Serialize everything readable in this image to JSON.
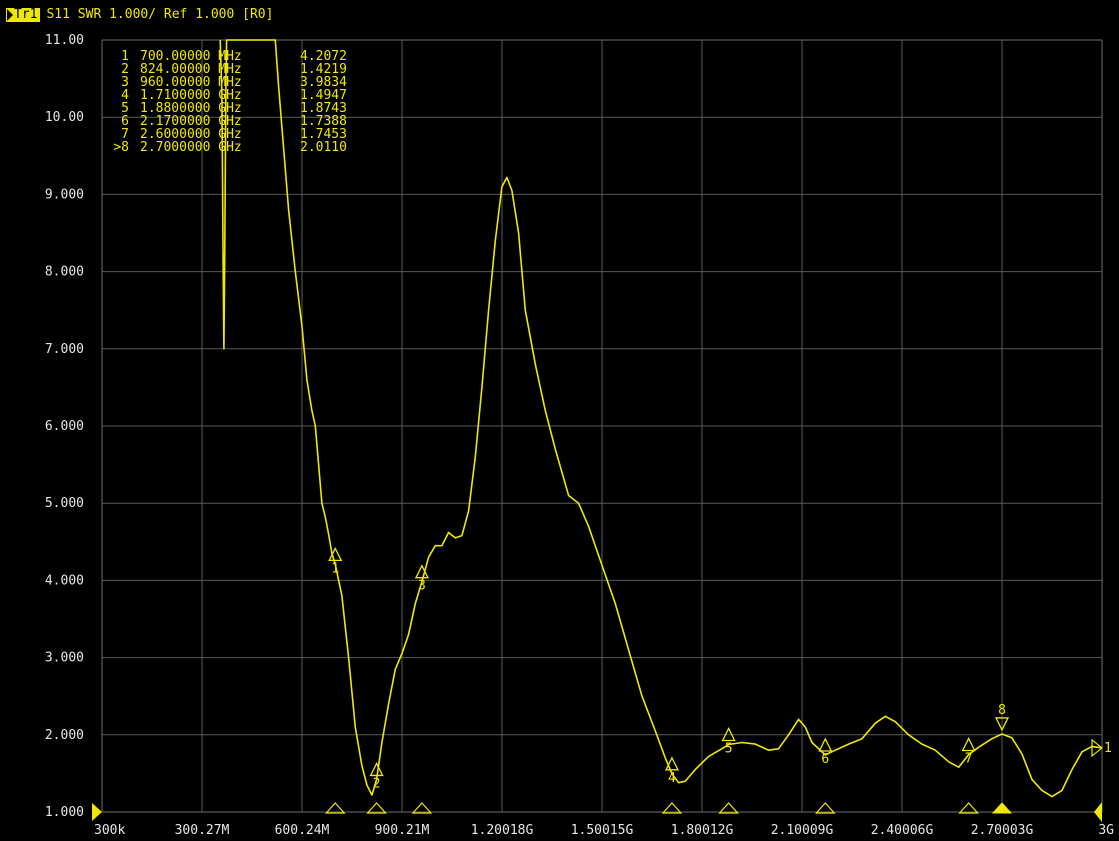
{
  "header": {
    "trace_label": "Tr1",
    "text": "S11 SWR 1.000/ Ref 1.000 [R0]"
  },
  "colors": {
    "background": "#000000",
    "trace": "#f0e800",
    "grid": "#5a5a5a",
    "text": "#e6e6e6"
  },
  "markers_table": [
    {
      "id": "1",
      "freq": "700.00000 MHz",
      "value": "4.2072"
    },
    {
      "id": "2",
      "freq": "824.00000 MHz",
      "value": "1.4219"
    },
    {
      "id": "3",
      "freq": "960.00000 MHz",
      "value": "3.9834"
    },
    {
      "id": "4",
      "freq": "1.7100000 GHz",
      "value": "1.4947"
    },
    {
      "id": "5",
      "freq": "1.8800000 GHz",
      "value": "1.8743"
    },
    {
      "id": "6",
      "freq": "2.1700000 GHz",
      "value": "1.7388"
    },
    {
      "id": "7",
      "freq": "2.6000000 GHz",
      "value": "1.7453"
    },
    {
      "id": ">8",
      "freq": "2.7000000 GHz",
      "value": "2.0110"
    }
  ],
  "chart_data": {
    "type": "line",
    "title": "S11 SWR 1.000/ Ref 1.000 [R0]",
    "xlabel": "",
    "ylabel": "",
    "xlim": [
      0.0003,
      3.0
    ],
    "ylim": [
      1.0,
      11.0
    ],
    "grid": true,
    "x_tick_labels": [
      "300k",
      "300.27M",
      "600.24M",
      "900.21M",
      "1.20018G",
      "1.50015G",
      "1.80012G",
      "2.10009G",
      "2.40006G",
      "2.70003G",
      "3G"
    ],
    "y_tick_labels": [
      "11.00",
      "10.00",
      "9.000",
      "8.000",
      "7.000",
      "6.000",
      "5.000",
      "4.000",
      "3.000",
      "2.000",
      "1.000"
    ],
    "series": [
      {
        "points": [
          [
            0.355,
            11.0
          ],
          [
            0.36,
            10.3
          ],
          [
            0.364,
            8.0
          ],
          [
            0.366,
            7.0
          ],
          [
            0.368,
            8.0
          ],
          [
            0.372,
            10.4
          ],
          [
            0.374,
            11.0
          ],
          [
            0.52,
            11.0
          ],
          [
            0.53,
            10.4
          ],
          [
            0.545,
            9.6
          ],
          [
            0.56,
            8.8
          ],
          [
            0.58,
            8.0
          ],
          [
            0.6,
            7.3
          ],
          [
            0.615,
            6.6
          ],
          [
            0.63,
            6.2
          ],
          [
            0.64,
            6.0
          ],
          [
            0.65,
            5.5
          ],
          [
            0.66,
            5.0
          ],
          [
            0.67,
            4.82
          ],
          [
            0.68,
            4.6
          ],
          [
            0.69,
            4.35
          ],
          [
            0.7,
            4.207
          ],
          [
            0.72,
            3.8
          ],
          [
            0.74,
            3.0
          ],
          [
            0.76,
            2.1
          ],
          [
            0.78,
            1.6
          ],
          [
            0.795,
            1.35
          ],
          [
            0.81,
            1.22
          ],
          [
            0.824,
            1.422
          ],
          [
            0.84,
            1.9
          ],
          [
            0.86,
            2.4
          ],
          [
            0.88,
            2.85
          ],
          [
            0.9,
            3.05
          ],
          [
            0.92,
            3.3
          ],
          [
            0.94,
            3.7
          ],
          [
            0.96,
            3.983
          ],
          [
            0.98,
            4.3
          ],
          [
            1.0,
            4.45
          ],
          [
            1.02,
            4.45
          ],
          [
            1.04,
            4.62
          ],
          [
            1.06,
            4.55
          ],
          [
            1.08,
            4.58
          ],
          [
            1.1,
            4.9
          ],
          [
            1.12,
            5.6
          ],
          [
            1.14,
            6.5
          ],
          [
            1.16,
            7.5
          ],
          [
            1.18,
            8.4
          ],
          [
            1.2,
            9.1
          ],
          [
            1.215,
            9.22
          ],
          [
            1.23,
            9.05
          ],
          [
            1.25,
            8.5
          ],
          [
            1.27,
            7.5
          ],
          [
            1.3,
            6.8
          ],
          [
            1.33,
            6.2
          ],
          [
            1.36,
            5.7
          ],
          [
            1.4,
            5.1
          ],
          [
            1.43,
            5.0
          ],
          [
            1.46,
            4.7
          ],
          [
            1.5,
            4.2
          ],
          [
            1.54,
            3.7
          ],
          [
            1.58,
            3.1
          ],
          [
            1.62,
            2.5
          ],
          [
            1.66,
            2.05
          ],
          [
            1.69,
            1.7
          ],
          [
            1.71,
            1.495
          ],
          [
            1.73,
            1.38
          ],
          [
            1.75,
            1.4
          ],
          [
            1.78,
            1.55
          ],
          [
            1.82,
            1.72
          ],
          [
            1.86,
            1.82
          ],
          [
            1.88,
            1.874
          ],
          [
            1.92,
            1.9
          ],
          [
            1.96,
            1.88
          ],
          [
            2.0,
            1.8
          ],
          [
            2.03,
            1.82
          ],
          [
            2.06,
            2.0
          ],
          [
            2.09,
            2.2
          ],
          [
            2.11,
            2.1
          ],
          [
            2.13,
            1.9
          ],
          [
            2.17,
            1.739
          ],
          [
            2.2,
            1.8
          ],
          [
            2.24,
            1.88
          ],
          [
            2.28,
            1.95
          ],
          [
            2.32,
            2.15
          ],
          [
            2.35,
            2.24
          ],
          [
            2.38,
            2.17
          ],
          [
            2.42,
            2.0
          ],
          [
            2.46,
            1.88
          ],
          [
            2.5,
            1.8
          ],
          [
            2.54,
            1.65
          ],
          [
            2.57,
            1.58
          ],
          [
            2.6,
            1.745
          ],
          [
            2.63,
            1.84
          ],
          [
            2.67,
            1.95
          ],
          [
            2.7,
            2.011
          ],
          [
            2.73,
            1.96
          ],
          [
            2.76,
            1.75
          ],
          [
            2.79,
            1.42
          ],
          [
            2.82,
            1.28
          ],
          [
            2.85,
            1.2
          ],
          [
            2.88,
            1.28
          ],
          [
            2.91,
            1.55
          ],
          [
            2.94,
            1.78
          ],
          [
            2.97,
            1.85
          ],
          [
            3.0,
            1.83
          ]
        ]
      }
    ],
    "markers": [
      {
        "label": "1",
        "x": 0.7,
        "y": 4.2072
      },
      {
        "label": "2",
        "x": 0.824,
        "y": 1.4219
      },
      {
        "label": "3",
        "x": 0.96,
        "y": 3.9834
      },
      {
        "label": "4",
        "x": 1.71,
        "y": 1.4947
      },
      {
        "label": "5",
        "x": 1.88,
        "y": 1.8743
      },
      {
        "label": "6",
        "x": 2.17,
        "y": 1.7388
      },
      {
        "label": "7",
        "x": 2.6,
        "y": 1.7453
      },
      {
        "label": "8",
        "x": 2.7,
        "y": 2.011,
        "active": true
      }
    ],
    "reference_level_label": "1",
    "reference_level_value": 1.83
  }
}
